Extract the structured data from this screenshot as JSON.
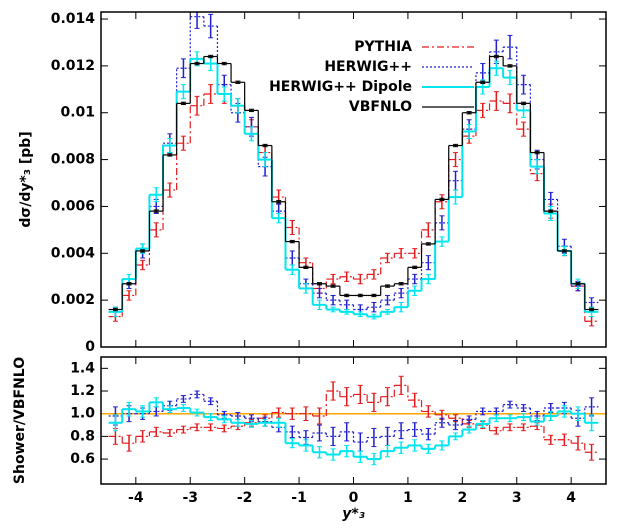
{
  "chart_data": [
    {
      "type": "histogram",
      "ylabel": "dσ/dy*₃ [pb]",
      "bins": [
        -4.5,
        -4.25,
        -4,
        -3.75,
        -3.5,
        -3.25,
        -3,
        -2.75,
        -2.5,
        -2.25,
        -2,
        -1.75,
        -1.5,
        -1.25,
        -1,
        -0.75,
        -0.5,
        -0.25,
        0,
        0.25,
        0.5,
        0.75,
        1,
        1.25,
        1.5,
        1.75,
        2,
        2.25,
        2.5,
        2.75,
        3,
        3.25,
        3.5,
        3.75,
        4,
        4.25,
        4.5
      ],
      "xlim": [
        -4.64,
        4.64
      ],
      "xticks": [
        -4,
        -3,
        -2,
        -1,
        0,
        1,
        2,
        3,
        4
      ],
      "ylim": [
        0,
        0.0143
      ],
      "yticks": [
        0,
        0.002,
        0.004,
        0.006,
        0.008,
        0.01,
        0.012,
        0.014
      ],
      "legend": "upper center",
      "series": [
        {
          "name": "PYTHIA",
          "color": "#e41a1c",
          "dash": "dashdot",
          "values": [
            0.0013,
            0.0022,
            0.0035,
            0.005,
            0.0067,
            0.0087,
            0.0103,
            0.0108,
            0.0108,
            0.0103,
            0.0094,
            0.0083,
            0.0064,
            0.0051,
            0.0036,
            0.0025,
            0.0029,
            0.003,
            0.0029,
            0.0031,
            0.0038,
            0.004,
            0.004,
            0.005,
            0.0062,
            0.008,
            0.009,
            0.0101,
            0.0105,
            0.0104,
            0.0093,
            0.0074,
            0.0058,
            0.0041,
            0.0026,
            0.0011
          ],
          "errors": [
            0.0002,
            0.0002,
            0.0002,
            0.0003,
            0.0003,
            0.0003,
            0.0004,
            0.0004,
            0.0004,
            0.0003,
            0.0003,
            0.0003,
            0.0003,
            0.0003,
            0.0002,
            0.0002,
            0.0002,
            0.0002,
            0.0002,
            0.0002,
            0.0002,
            0.0002,
            0.0002,
            0.0003,
            0.0003,
            0.0003,
            0.0003,
            0.0003,
            0.0004,
            0.0004,
            0.0003,
            0.0003,
            0.0003,
            0.0002,
            0.0002,
            0.0002
          ]
        },
        {
          "name": "HERWIG++",
          "color": "#1f1fd0",
          "dash": "dotted",
          "values": [
            0.0015,
            0.0027,
            0.0041,
            0.006,
            0.0087,
            0.0119,
            0.0141,
            0.0137,
            0.0112,
            0.01,
            0.0094,
            0.0077,
            0.0058,
            0.0038,
            0.0027,
            0.0023,
            0.002,
            0.0018,
            0.0016,
            0.0017,
            0.002,
            0.0023,
            0.0029,
            0.0036,
            0.0053,
            0.0071,
            0.0093,
            0.0117,
            0.0126,
            0.0128,
            0.0112,
            0.008,
            0.0063,
            0.0043,
            0.0026,
            0.0019
          ],
          "errors": [
            0.0002,
            0.0002,
            0.0003,
            0.0003,
            0.0004,
            0.0004,
            0.0005,
            0.0005,
            0.0004,
            0.0004,
            0.0004,
            0.0004,
            0.0003,
            0.0003,
            0.0002,
            0.0002,
            0.0002,
            0.0002,
            0.0002,
            0.0002,
            0.0002,
            0.0002,
            0.0002,
            0.0003,
            0.0003,
            0.0004,
            0.0004,
            0.0004,
            0.0005,
            0.0005,
            0.0004,
            0.0004,
            0.0003,
            0.0003,
            0.0002,
            0.0002
          ]
        },
        {
          "name": "HERWIG++ Dipole",
          "color": "#00e5ee",
          "dash": "solid",
          "values": [
            0.0015,
            0.0029,
            0.0042,
            0.0065,
            0.0086,
            0.0109,
            0.0123,
            0.0121,
            0.0108,
            0.0103,
            0.0091,
            0.008,
            0.0055,
            0.0033,
            0.0025,
            0.0018,
            0.0016,
            0.0015,
            0.0014,
            0.0013,
            0.0015,
            0.0017,
            0.0024,
            0.0029,
            0.0045,
            0.0064,
            0.0092,
            0.0111,
            0.0119,
            0.0115,
            0.0101,
            0.0077,
            0.0057,
            0.0041,
            0.0027,
            0.0015
          ],
          "errors": [
            0.0002,
            0.0002,
            0.0002,
            0.0003,
            0.0003,
            0.0003,
            0.0003,
            0.0003,
            0.0003,
            0.0003,
            0.0003,
            0.0003,
            0.0002,
            0.0002,
            0.0002,
            0.0002,
            0.0001,
            0.0001,
            0.0001,
            0.0001,
            0.0001,
            0.0002,
            0.0002,
            0.0002,
            0.0002,
            0.0003,
            0.0003,
            0.0003,
            0.0003,
            0.0003,
            0.0003,
            0.0003,
            0.0003,
            0.0002,
            0.0002,
            0.0002
          ]
        },
        {
          "name": "VBFNLO",
          "color": "#000000",
          "dash": "solid",
          "values": [
            0.0016,
            0.0027,
            0.0041,
            0.0058,
            0.0082,
            0.0104,
            0.0121,
            0.0124,
            0.0121,
            0.0113,
            0.0101,
            0.0086,
            0.0062,
            0.0045,
            0.0034,
            0.0027,
            0.0026,
            0.0022,
            0.0022,
            0.0022,
            0.0026,
            0.0027,
            0.0034,
            0.0044,
            0.0063,
            0.0086,
            0.01,
            0.0113,
            0.0124,
            0.012,
            0.0104,
            0.0083,
            0.0058,
            0.0041,
            0.0027,
            0.0016
          ],
          "errors": [
            5e-05,
            5e-05,
            5e-05,
            5e-05,
            5e-05,
            5e-05,
            5e-05,
            5e-05,
            5e-05,
            5e-05,
            5e-05,
            5e-05,
            5e-05,
            5e-05,
            5e-05,
            5e-05,
            5e-05,
            5e-05,
            5e-05,
            5e-05,
            5e-05,
            5e-05,
            5e-05,
            5e-05,
            5e-05,
            5e-05,
            5e-05,
            5e-05,
            5e-05,
            5e-05,
            5e-05,
            5e-05,
            5e-05,
            5e-05,
            5e-05,
            5e-05
          ]
        }
      ]
    },
    {
      "type": "histogram",
      "ylabel": "Shower/VBFNLO",
      "xlabel": "y*₃",
      "bins": [
        -4.5,
        -4.25,
        -4,
        -3.75,
        -3.5,
        -3.25,
        -3,
        -2.75,
        -2.5,
        -2.25,
        -2,
        -1.75,
        -1.5,
        -1.25,
        -1,
        -0.75,
        -0.5,
        -0.25,
        0,
        0.25,
        0.5,
        0.75,
        1,
        1.25,
        1.5,
        1.75,
        2,
        2.25,
        2.5,
        2.75,
        3,
        3.25,
        3.5,
        3.75,
        4,
        4.25,
        4.5
      ],
      "xlim": [
        -4.64,
        4.64
      ],
      "xticks": [
        -4,
        -3,
        -2,
        -1,
        0,
        1,
        2,
        3,
        4
      ],
      "ylim": [
        0.38,
        1.5
      ],
      "yticks": [
        0.6,
        0.8,
        {
          "value": 1,
          "label": "1.0"
        },
        1.2,
        1.4
      ],
      "reference_line": {
        "value": 1,
        "color": "#ffa500"
      },
      "series": [
        {
          "color": "#e41a1c",
          "dash": "dashdot",
          "values": [
            0.8,
            0.74,
            0.8,
            0.84,
            0.83,
            0.86,
            0.88,
            0.88,
            0.87,
            0.89,
            0.92,
            0.96,
            1.01,
            1.0,
            1.0,
            0.98,
            1.2,
            1.15,
            1.17,
            1.1,
            1.15,
            1.25,
            1.12,
            1.02,
            0.99,
            0.96,
            0.91,
            0.9,
            0.85,
            0.88,
            0.88,
            0.89,
            0.77,
            0.77,
            0.74,
            0.66
          ],
          "errors": [
            0.07,
            0.07,
            0.05,
            0.04,
            0.03,
            0.03,
            0.03,
            0.03,
            0.03,
            0.03,
            0.03,
            0.03,
            0.04,
            0.05,
            0.06,
            0.07,
            0.08,
            0.08,
            0.08,
            0.08,
            0.08,
            0.08,
            0.06,
            0.05,
            0.04,
            0.03,
            0.03,
            0.03,
            0.03,
            0.03,
            0.03,
            0.03,
            0.04,
            0.05,
            0.06,
            0.07
          ]
        },
        {
          "color": "#1f1fd0",
          "dash": "dotted",
          "values": [
            0.98,
            1.0,
            1.0,
            1.02,
            1.07,
            1.13,
            1.17,
            1.11,
            0.99,
            0.98,
            0.96,
            0.93,
            0.88,
            0.84,
            0.79,
            0.83,
            0.8,
            0.84,
            0.75,
            0.79,
            0.8,
            0.85,
            0.86,
            0.82,
            0.92,
            0.9,
            0.95,
            1.02,
            1.02,
            1.08,
            1.05,
            0.98,
            1.05,
            1.05,
            0.96,
            1.06
          ],
          "errors": [
            0.08,
            0.07,
            0.05,
            0.04,
            0.04,
            0.03,
            0.03,
            0.03,
            0.03,
            0.03,
            0.03,
            0.04,
            0.04,
            0.05,
            0.06,
            0.07,
            0.08,
            0.08,
            0.08,
            0.08,
            0.08,
            0.07,
            0.06,
            0.05,
            0.04,
            0.04,
            0.03,
            0.03,
            0.03,
            0.03,
            0.03,
            0.04,
            0.04,
            0.05,
            0.07,
            0.08
          ]
        },
        {
          "color": "#00e5ee",
          "dash": "solid",
          "values": [
            0.92,
            1.04,
            1.02,
            1.1,
            1.04,
            1.05,
            1.01,
            0.97,
            0.95,
            0.92,
            0.91,
            0.92,
            0.92,
            0.74,
            0.72,
            0.66,
            0.64,
            0.67,
            0.62,
            0.6,
            0.67,
            0.7,
            0.72,
            0.69,
            0.72,
            0.8,
            0.86,
            0.91,
            0.96,
            0.96,
            0.97,
            0.93,
            0.98,
            1.02,
            1.0,
            0.92
          ],
          "errors": [
            0.07,
            0.06,
            0.05,
            0.04,
            0.03,
            0.03,
            0.03,
            0.03,
            0.03,
            0.03,
            0.03,
            0.03,
            0.04,
            0.04,
            0.05,
            0.05,
            0.05,
            0.05,
            0.05,
            0.05,
            0.05,
            0.05,
            0.05,
            0.04,
            0.04,
            0.03,
            0.03,
            0.03,
            0.03,
            0.03,
            0.03,
            0.03,
            0.04,
            0.05,
            0.06,
            0.07
          ]
        }
      ]
    }
  ]
}
